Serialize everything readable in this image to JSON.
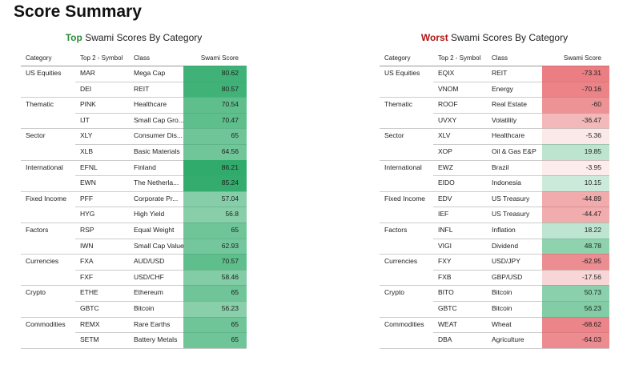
{
  "title": "Score Summary",
  "tables": [
    {
      "title_lead": "Top",
      "title_rest": "Swami Scores By Category",
      "headers": [
        "Category",
        "Top 2 - Symbol",
        "Class",
        "Swami Score"
      ],
      "groups": [
        {
          "category": "US Equities",
          "rows": [
            [
              "MAR",
              "Mega Cap",
              80.62
            ],
            [
              "DEI",
              "REIT",
              80.57
            ]
          ]
        },
        {
          "category": "Thematic",
          "rows": [
            [
              "PINK",
              "Healthcare",
              70.54
            ],
            [
              "IJT",
              "Small Cap Gro...",
              70.47
            ]
          ]
        },
        {
          "category": "Sector",
          "rows": [
            [
              "XLY",
              "Consumer Dis...",
              65
            ],
            [
              "XLB",
              "Basic Materials",
              64.56
            ]
          ]
        },
        {
          "category": "International",
          "rows": [
            [
              "EFNL",
              "Finland",
              86.21
            ],
            [
              "EWN",
              "The Netherla...",
              85.24
            ]
          ]
        },
        {
          "category": "Fixed Income",
          "rows": [
            [
              "PFF",
              "Corporate Pr...",
              57.04
            ],
            [
              "HYG",
              "High Yield",
              56.8
            ]
          ]
        },
        {
          "category": "Factors",
          "rows": [
            [
              "RSP",
              "Equal Weight",
              65
            ],
            [
              "IWN",
              "Small Cap Value",
              62.93
            ]
          ]
        },
        {
          "category": "Currencies",
          "rows": [
            [
              "FXA",
              "AUD/USD",
              70.57
            ],
            [
              "FXF",
              "USD/CHF",
              58.46
            ]
          ]
        },
        {
          "category": "Crypto",
          "rows": [
            [
              "ETHE",
              "Ethereum",
              65
            ],
            [
              "GBTC",
              "Bitcoin",
              56.23
            ]
          ]
        },
        {
          "category": "Commodities",
          "rows": [
            [
              "REMX",
              "Rare Earths",
              65
            ],
            [
              "SETM",
              "Battery Metals",
              65
            ]
          ]
        }
      ]
    },
    {
      "title_lead": "Worst",
      "title_rest": "Swami Scores By Category",
      "headers": [
        "Category",
        "Top 2 - Symbol",
        "Class",
        "Swami Score"
      ],
      "groups": [
        {
          "category": "US Equities",
          "rows": [
            [
              "EQIX",
              "REIT",
              -73.31
            ],
            [
              "VNOM",
              "Energy",
              -70.16
            ]
          ]
        },
        {
          "category": "Thematic",
          "rows": [
            [
              "ROOF",
              "Real Estate",
              -60
            ],
            [
              "UVXY",
              "Volatility",
              -36.47
            ]
          ]
        },
        {
          "category": "Sector",
          "rows": [
            [
              "XLV",
              "Healthcare",
              -5.36
            ],
            [
              "XOP",
              "Oil & Gas E&P",
              19.85
            ]
          ]
        },
        {
          "category": "International",
          "rows": [
            [
              "EWZ",
              "Brazil",
              -3.95
            ],
            [
              "EIDO",
              "Indonesia",
              10.15
            ]
          ]
        },
        {
          "category": "Fixed Income",
          "rows": [
            [
              "EDV",
              "US Treasury",
              -44.89
            ],
            [
              "IEF",
              "US Treasury",
              -44.47
            ]
          ]
        },
        {
          "category": "Factors",
          "rows": [
            [
              "INFL",
              "Inflation",
              18.22
            ],
            [
              "VIGI",
              "Dividend",
              48.78
            ]
          ]
        },
        {
          "category": "Currencies",
          "rows": [
            [
              "FXY",
              "USD/JPY",
              -62.95
            ],
            [
              "FXB",
              "GBP/USD",
              -17.56
            ]
          ]
        },
        {
          "category": "Crypto",
          "rows": [
            [
              "BITO",
              "Bitcoin",
              50.73
            ],
            [
              "GBTC",
              "Bitcoin",
              56.23
            ]
          ]
        },
        {
          "category": "Commodities",
          "rows": [
            [
              "WEAT",
              "Wheat",
              -68.62
            ],
            [
              "DBA",
              "Agriculture",
              -64.03
            ]
          ]
        }
      ]
    }
  ]
}
